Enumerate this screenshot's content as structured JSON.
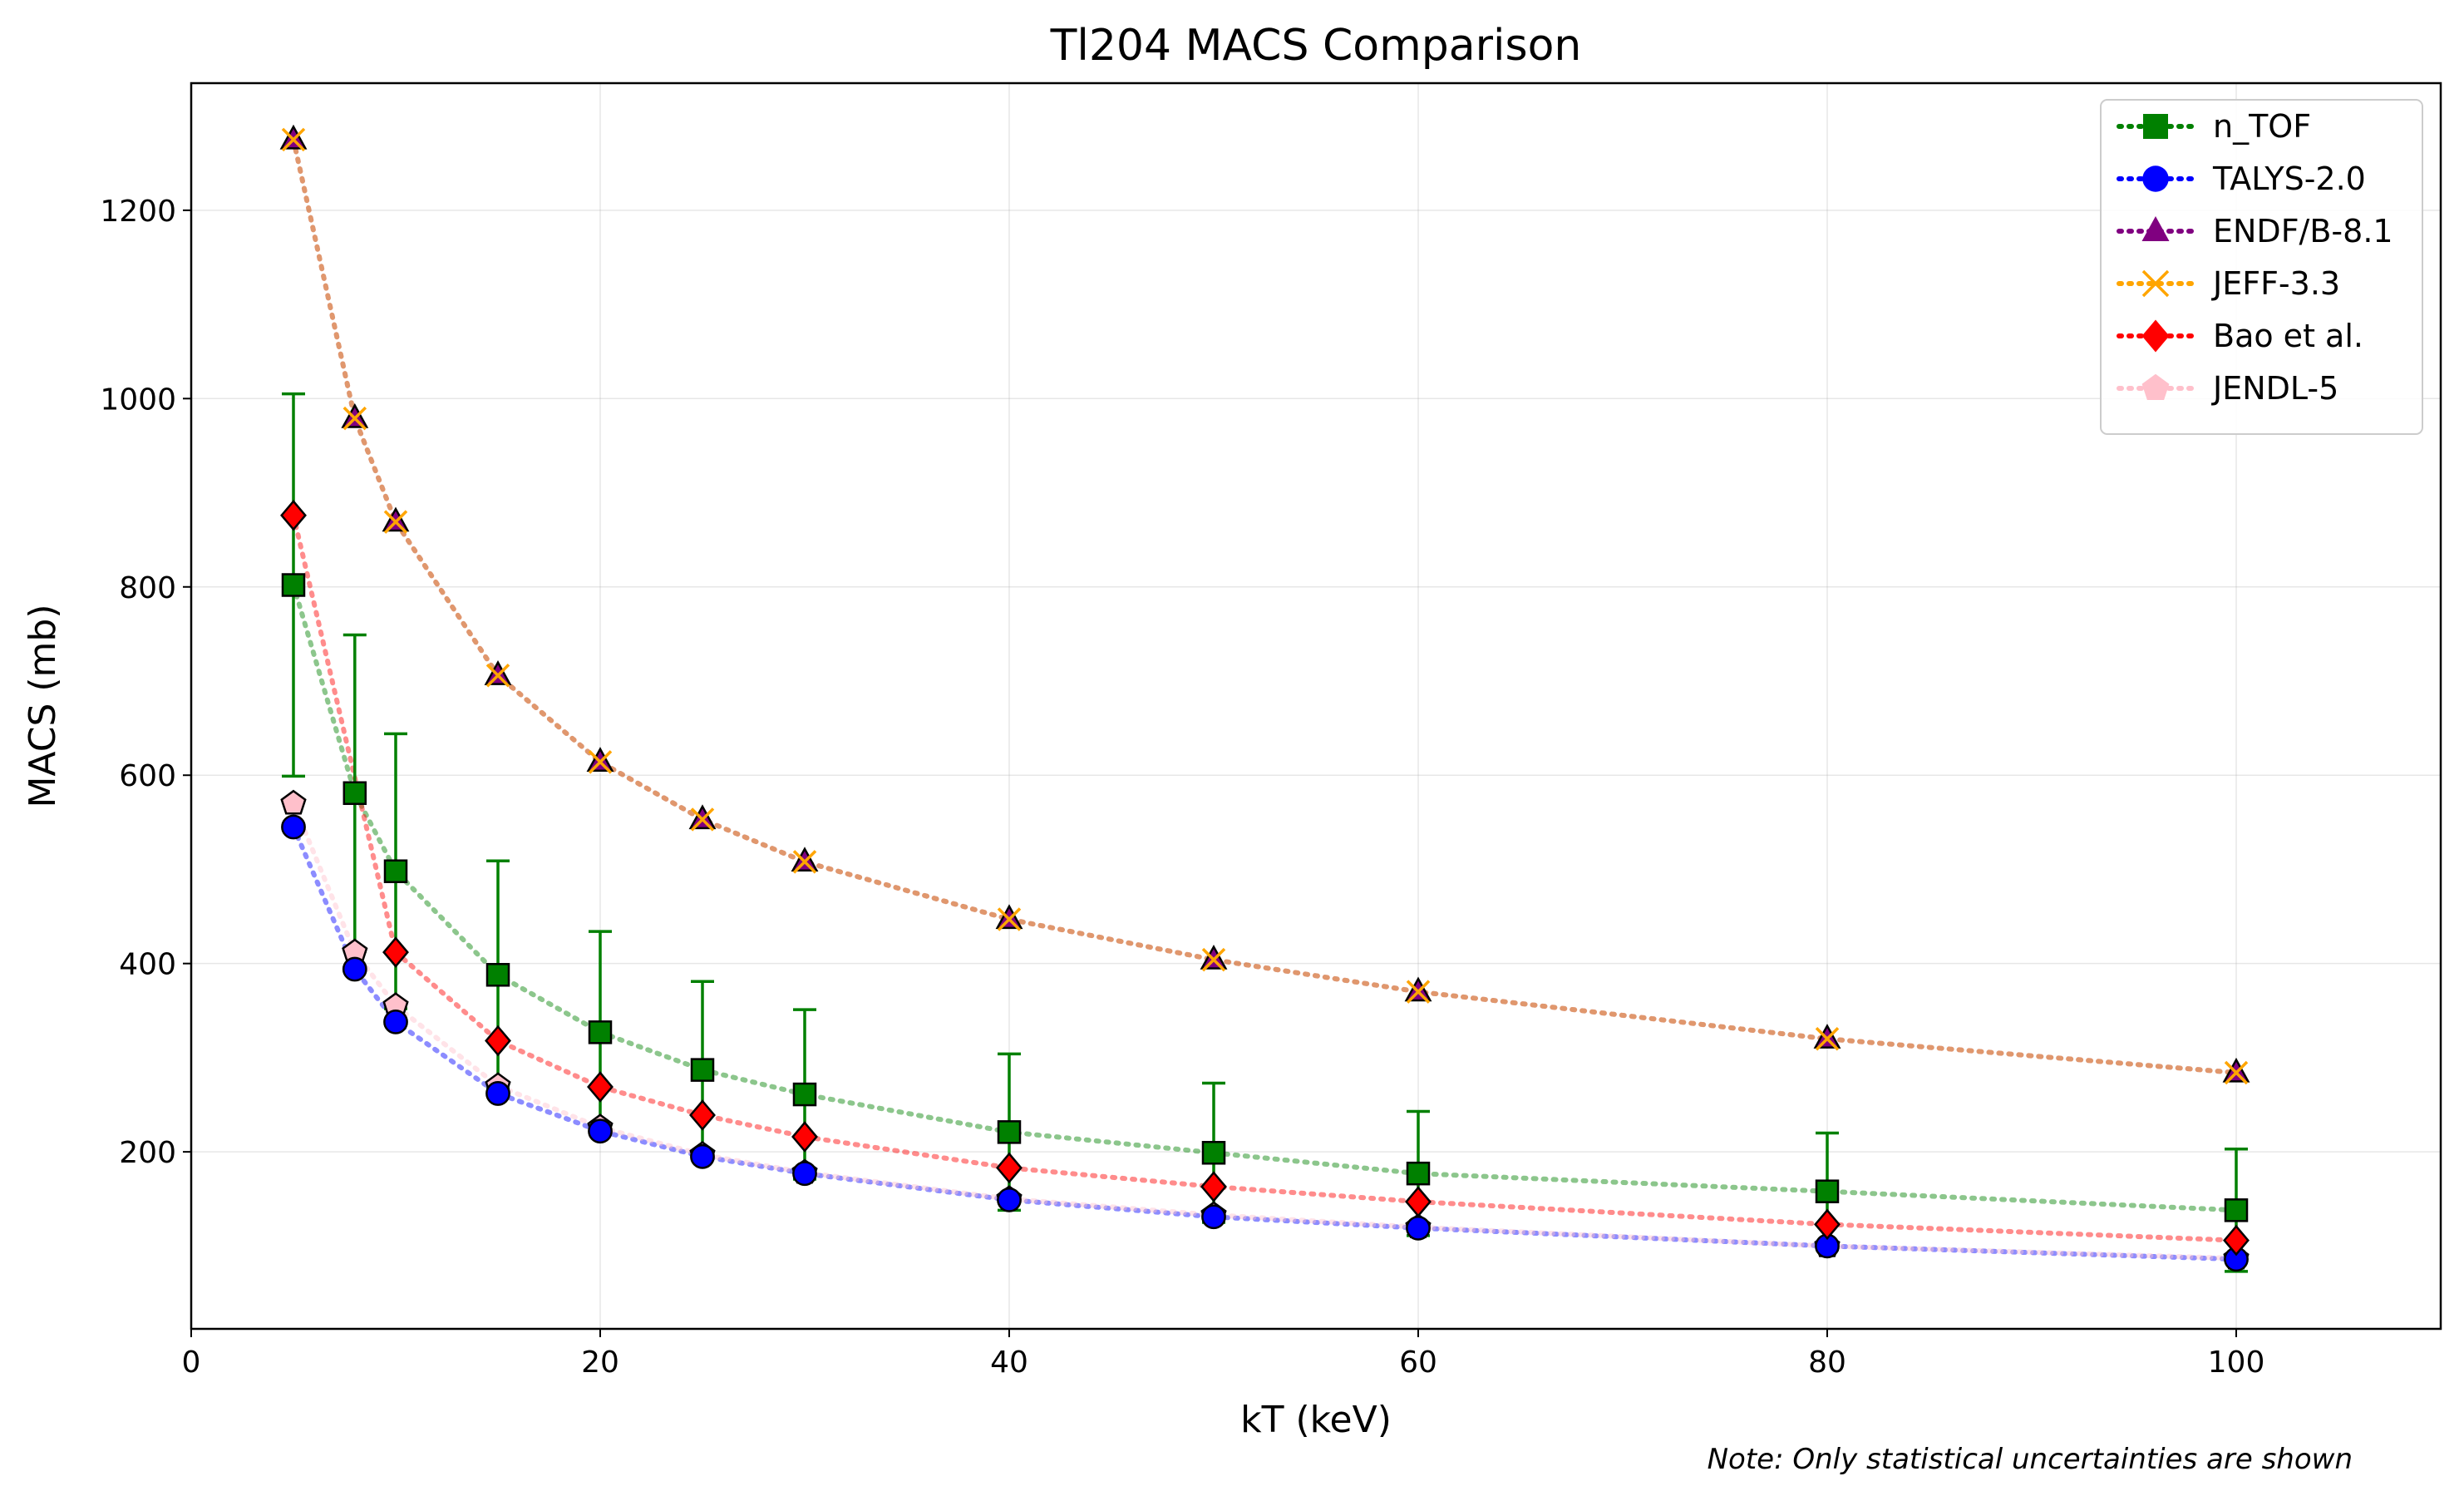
{
  "chart_data": {
    "type": "scatter",
    "title": "Tl204 MACS Comparison",
    "xlabel": "kT (keV)",
    "ylabel": "MACS (mb)",
    "xlim": [
      0,
      110
    ],
    "ylim": [
      12,
      1335
    ],
    "x_ticks": [
      0,
      20,
      40,
      60,
      80,
      100
    ],
    "y_ticks": [
      200,
      400,
      600,
      800,
      1000,
      1200
    ],
    "grid": true,
    "legend_position": "top-right",
    "note": "Note: Only statistical uncertainties are shown",
    "x": [
      5,
      8,
      10,
      15,
      20,
      25,
      30,
      40,
      50,
      60,
      80,
      100
    ],
    "series": [
      {
        "name": "n_TOF",
        "color": "#008000",
        "marker": "square",
        "values": [
          802,
          581,
          498,
          388,
          327,
          287,
          261,
          221,
          199,
          177,
          158,
          138
        ],
        "errors": [
          203,
          168,
          146,
          121,
          107,
          94,
          90,
          83,
          74,
          66,
          62,
          65
        ]
      },
      {
        "name": "TALYS-2.0",
        "color": "#0000ff",
        "marker": "circle",
        "values": [
          545,
          394,
          338,
          262,
          222,
          195,
          177,
          149,
          131,
          119,
          100,
          86
        ]
      },
      {
        "name": "ENDF/B-8.1",
        "color": "#800080",
        "marker": "triangle",
        "values": [
          1275,
          979,
          869,
          706,
          614,
          553,
          508,
          447,
          404,
          370,
          320,
          284
        ]
      },
      {
        "name": "JEFF-3.3",
        "color": "#ffa500",
        "marker": "x",
        "values": [
          1275,
          979,
          869,
          706,
          614,
          553,
          508,
          447,
          404,
          370,
          320,
          284
        ]
      },
      {
        "name": "Bao et al.",
        "color": "#ff0000",
        "marker": "diamond",
        "values": [
          876,
          null,
          412,
          318,
          269,
          239,
          216,
          183,
          163,
          147,
          123,
          106
        ]
      },
      {
        "name": "JENDL-5",
        "color": "#ffc0cb",
        "marker": "pentagon",
        "values": [
          570,
          412,
          355,
          270,
          226,
          197,
          178,
          150,
          133,
          120,
          100,
          87
        ]
      }
    ]
  }
}
